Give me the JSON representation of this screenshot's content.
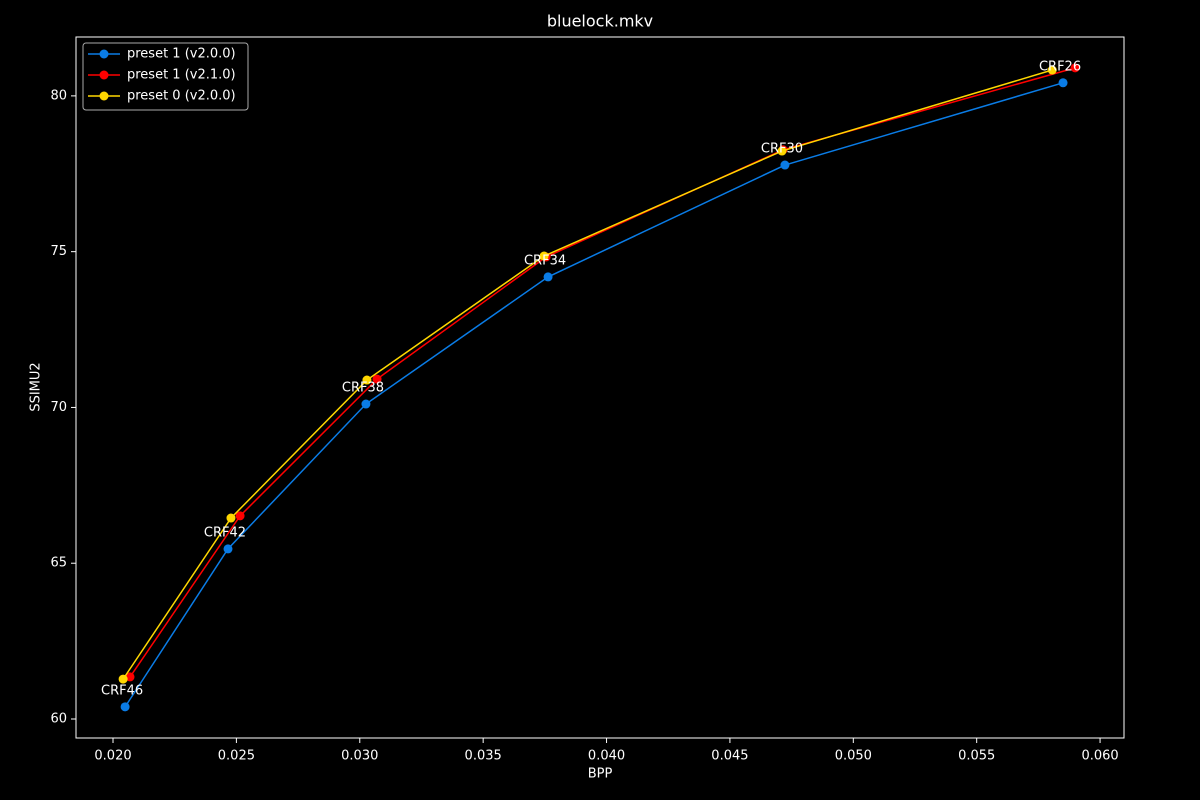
{
  "chart_data": {
    "type": "line",
    "title": "bluelock.mkv",
    "x_label": "BPP",
    "y_label": "SSIMU2",
    "xlim": [
      0.0185,
      0.06097
    ],
    "ylim": [
      59.39,
      81.89
    ],
    "xticks": [
      {
        "value": 0.02,
        "label": "0.020"
      },
      0.025,
      {
        "value": 0.03,
        "label": "0.030"
      },
      0.035,
      {
        "value": 0.04,
        "label": "0.040"
      },
      0.045,
      {
        "value": 0.05,
        "label": "0.050"
      },
      0.055,
      {
        "value": 0.06,
        "label": "0.060"
      }
    ],
    "yticks": [
      60,
      65,
      70,
      75,
      80
    ],
    "legend": "upper left",
    "series": [
      {
        "name": "preset 1 (v2.0.0)",
        "color": "#0a7ce6",
        "x": [
          0.02049,
          0.02466,
          0.03025,
          0.03763,
          0.04723,
          0.0585
        ],
        "values": [
          60.39,
          65.46,
          70.11,
          74.19,
          77.78,
          80.42
        ]
      },
      {
        "name": "preset 1 (v2.1.0)",
        "color": "#ff0000",
        "x": [
          0.02069,
          0.02515,
          0.0307,
          0.03755,
          0.04715,
          0.05899
        ],
        "values": [
          61.35,
          66.52,
          70.91,
          74.83,
          78.27,
          80.9
        ]
      },
      {
        "name": "preset 0 (v2.0.0)",
        "color": "#ffd700",
        "x": [
          0.02041,
          0.02478,
          0.03029,
          0.03747,
          0.04711,
          0.05806
        ],
        "values": [
          61.28,
          66.45,
          70.88,
          74.86,
          78.23,
          80.83
        ]
      }
    ],
    "annotations": [
      "CRF46",
      "CRF42",
      "CRF38",
      "CRF34",
      "CRF30",
      "CRF26"
    ]
  }
}
